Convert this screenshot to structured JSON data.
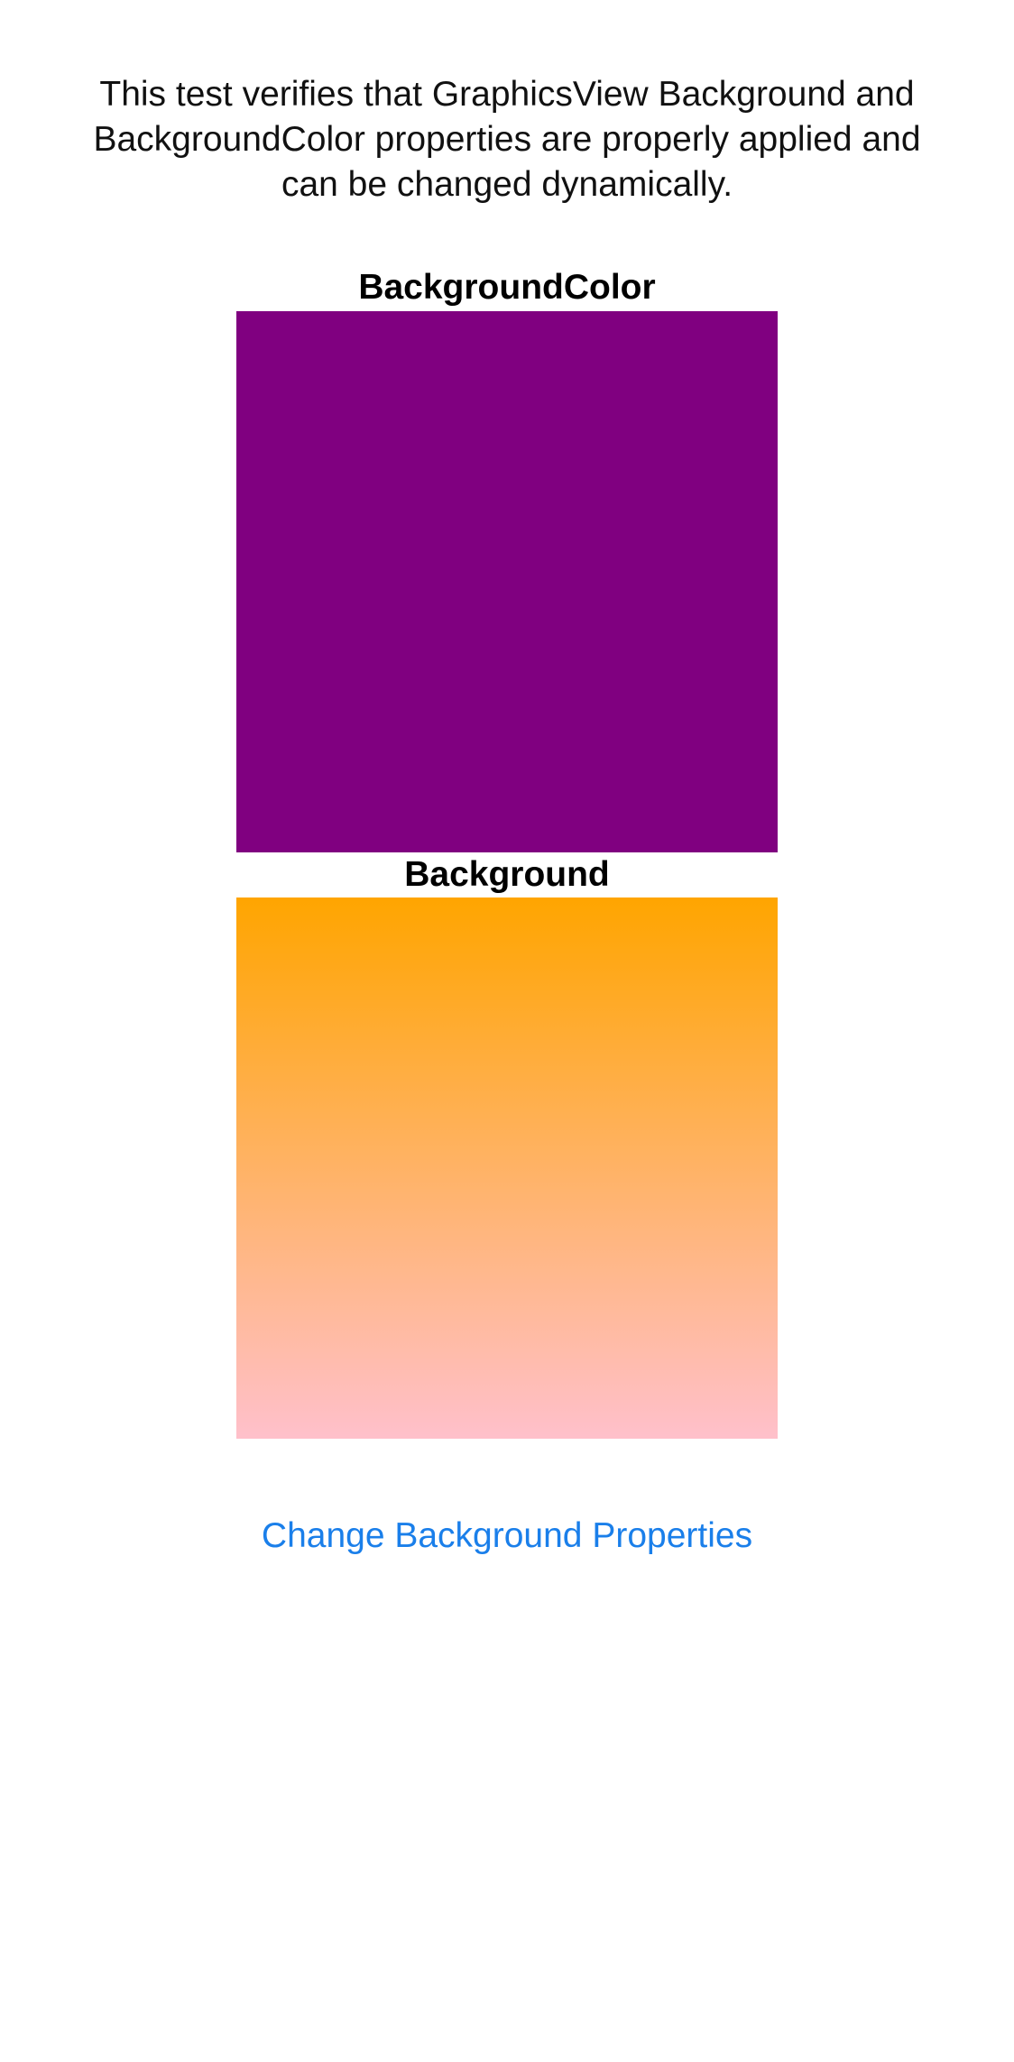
{
  "description": "This test verifies that GraphicsView Background and BackgroundColor properties are properly applied and can be changed dynamically.",
  "sections": {
    "background_color": {
      "label": "BackgroundColor",
      "fill": "#800080"
    },
    "background": {
      "label": "Background",
      "gradient_start": "#FFA500",
      "gradient_end": "#FFC0CB"
    }
  },
  "change_button": {
    "label": "Change Background Properties",
    "color": "#1A7FEA"
  }
}
